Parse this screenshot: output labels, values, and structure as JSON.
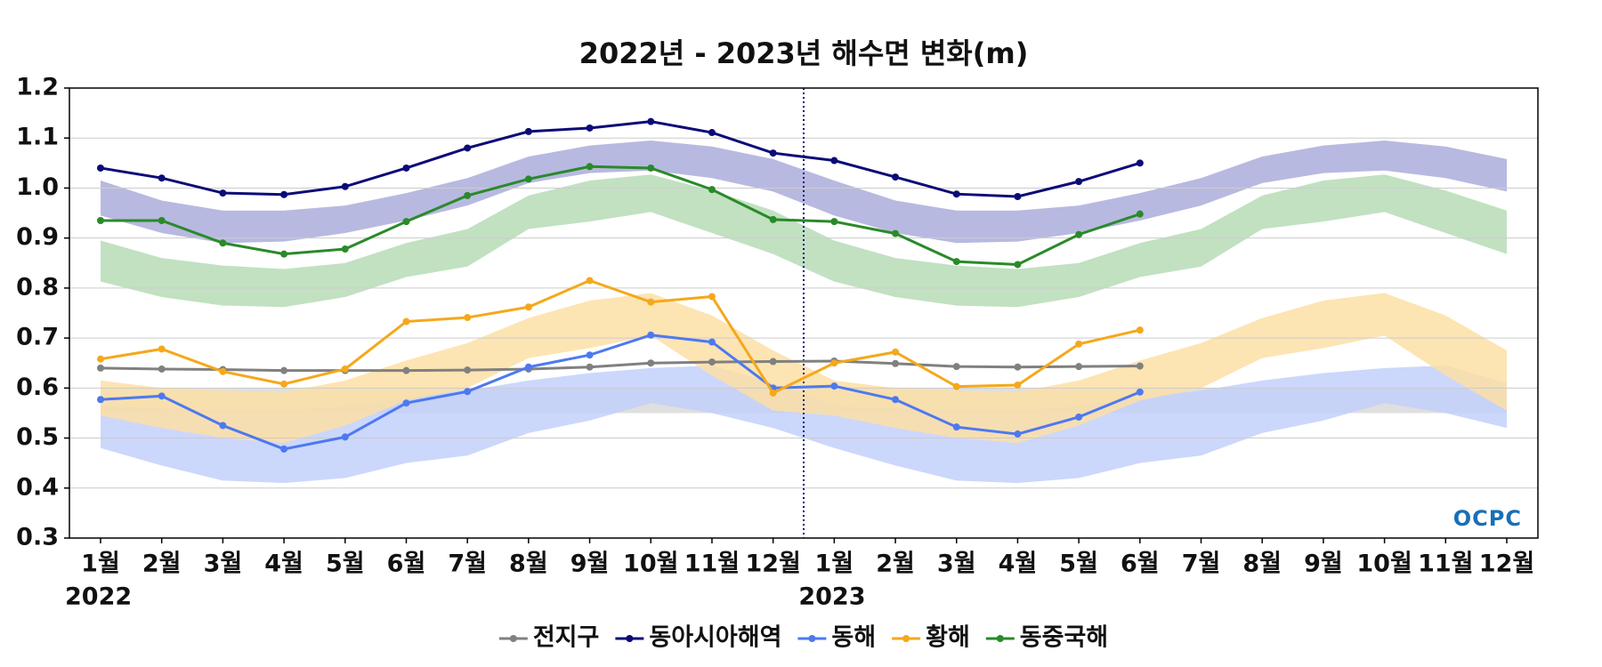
{
  "chart_data": {
    "type": "line",
    "title": "2022년 - 2023년 해수면 변화(m)",
    "logo": "OCPC",
    "categories": [
      "1월",
      "2월",
      "3월",
      "4월",
      "5월",
      "6월",
      "7월",
      "8월",
      "9월",
      "10월",
      "11월",
      "12월",
      "1월",
      "2월",
      "3월",
      "4월",
      "5월",
      "6월",
      "7월",
      "8월",
      "9월",
      "10월",
      "11월",
      "12월"
    ],
    "x_groups": [
      {
        "label": "2022",
        "start": 0
      },
      {
        "label": "2023",
        "start": 12
      }
    ],
    "ylim": [
      0.3,
      1.2
    ],
    "yticks": [
      0.3,
      0.4,
      0.5,
      0.6,
      0.7,
      0.8,
      0.9,
      {
        "value": 1.0,
        "label": "1.0"
      },
      1.1,
      1.2
    ],
    "grid": true,
    "legend": "bottom",
    "bands": [
      {
        "color": "#d9d9d9",
        "high": [
          0.6,
          0.6,
          0.6,
          0.6,
          0.6,
          0.6,
          0.6,
          0.6,
          0.6,
          0.6,
          0.6,
          0.6,
          0.6,
          0.6,
          0.6,
          0.6,
          0.6,
          0.6,
          0.6,
          0.6,
          0.6,
          0.6,
          0.6,
          0.6
        ],
        "low": [
          0.55,
          0.55,
          0.55,
          0.55,
          0.55,
          0.55,
          0.55,
          0.55,
          0.55,
          0.55,
          0.55,
          0.55,
          0.55,
          0.55,
          0.55,
          0.55,
          0.55,
          0.55,
          0.55,
          0.55,
          0.55,
          0.55,
          0.55,
          0.55
        ]
      },
      {
        "color": "#c3d0fb",
        "high": [
          0.565,
          0.56,
          0.555,
          0.555,
          0.565,
          0.58,
          0.595,
          0.615,
          0.63,
          0.64,
          0.645,
          0.61,
          0.565,
          0.56,
          0.555,
          0.555,
          0.565,
          0.58,
          0.595,
          0.615,
          0.63,
          0.64,
          0.645,
          0.61
        ],
        "low": [
          0.48,
          0.445,
          0.415,
          0.41,
          0.42,
          0.45,
          0.465,
          0.51,
          0.535,
          0.57,
          0.55,
          0.52,
          0.48,
          0.445,
          0.415,
          0.41,
          0.42,
          0.45,
          0.465,
          0.51,
          0.535,
          0.57,
          0.55,
          0.52
        ]
      },
      {
        "color": "#fddfa6",
        "high": [
          0.615,
          0.6,
          0.595,
          0.592,
          0.615,
          0.655,
          0.69,
          0.74,
          0.775,
          0.79,
          0.745,
          0.675,
          0.615,
          0.6,
          0.595,
          0.592,
          0.615,
          0.655,
          0.69,
          0.74,
          0.775,
          0.79,
          0.745,
          0.675
        ],
        "low": [
          0.545,
          0.52,
          0.5,
          0.49,
          0.525,
          0.575,
          0.6,
          0.66,
          0.68,
          0.705,
          0.625,
          0.555,
          0.545,
          0.52,
          0.5,
          0.49,
          0.525,
          0.575,
          0.6,
          0.66,
          0.68,
          0.705,
          0.625,
          0.555
        ]
      },
      {
        "color": "#b6dcb6",
        "high": [
          0.895,
          0.86,
          0.845,
          0.838,
          0.85,
          0.89,
          0.918,
          0.985,
          1.015,
          1.027,
          0.995,
          0.955,
          0.895,
          0.86,
          0.845,
          0.838,
          0.85,
          0.89,
          0.918,
          0.985,
          1.015,
          1.027,
          0.995,
          0.955
        ],
        "low": [
          0.813,
          0.782,
          0.765,
          0.762,
          0.782,
          0.822,
          0.843,
          0.918,
          0.933,
          0.952,
          0.91,
          0.868,
          0.813,
          0.782,
          0.765,
          0.762,
          0.782,
          0.822,
          0.843,
          0.918,
          0.933,
          0.952,
          0.91,
          0.868
        ]
      },
      {
        "color": "#abaddb",
        "high": [
          1.015,
          0.975,
          0.955,
          0.955,
          0.965,
          0.99,
          1.02,
          1.063,
          1.085,
          1.095,
          1.083,
          1.058,
          1.015,
          0.975,
          0.955,
          0.955,
          0.965,
          0.99,
          1.02,
          1.063,
          1.085,
          1.095,
          1.083,
          1.058
        ],
        "low": [
          0.945,
          0.91,
          0.89,
          0.893,
          0.91,
          0.935,
          0.965,
          1.01,
          1.03,
          1.035,
          1.02,
          0.993,
          0.945,
          0.91,
          0.89,
          0.893,
          0.91,
          0.935,
          0.965,
          1.01,
          1.03,
          1.035,
          1.02,
          0.993
        ]
      }
    ],
    "series": [
      {
        "name": "전지구",
        "color": "#808080",
        "values": [
          0.64,
          0.638,
          0.637,
          0.635,
          0.635,
          0.635,
          0.636,
          0.638,
          0.642,
          0.65,
          0.652,
          0.653,
          0.654,
          0.649,
          0.643,
          0.642,
          0.643,
          0.644,
          null,
          null,
          null,
          null,
          null,
          null
        ]
      },
      {
        "name": "동아시아해역",
        "color": "#0b0b78",
        "values": [
          1.04,
          1.02,
          0.99,
          0.987,
          1.003,
          1.04,
          1.08,
          1.113,
          1.12,
          1.133,
          1.111,
          1.07,
          1.055,
          1.022,
          0.988,
          0.983,
          1.013,
          1.05,
          null,
          null,
          null,
          null,
          null,
          null
        ]
      },
      {
        "name": "동해",
        "color": "#4d79f0",
        "values": [
          0.577,
          0.584,
          0.525,
          0.478,
          0.502,
          0.57,
          0.593,
          0.642,
          0.666,
          0.706,
          0.692,
          0.6,
          0.604,
          0.577,
          0.522,
          0.508,
          0.542,
          0.592,
          null,
          null,
          null,
          null,
          null,
          null
        ]
      },
      {
        "name": "황해",
        "color": "#f5a81b",
        "values": [
          0.658,
          0.678,
          0.633,
          0.608,
          0.638,
          0.733,
          0.741,
          0.762,
          0.815,
          0.772,
          0.783,
          0.59,
          0.65,
          0.672,
          0.603,
          0.606,
          0.688,
          0.716,
          null,
          null,
          null,
          null,
          null,
          null
        ]
      },
      {
        "name": "동중국해",
        "color": "#2a8a2a",
        "values": [
          0.935,
          0.935,
          0.89,
          0.868,
          0.878,
          0.933,
          0.985,
          1.018,
          1.043,
          1.04,
          0.997,
          0.937,
          0.933,
          0.909,
          0.853,
          0.847,
          0.907,
          0.948,
          null,
          null,
          null,
          null,
          null,
          null
        ]
      }
    ]
  }
}
